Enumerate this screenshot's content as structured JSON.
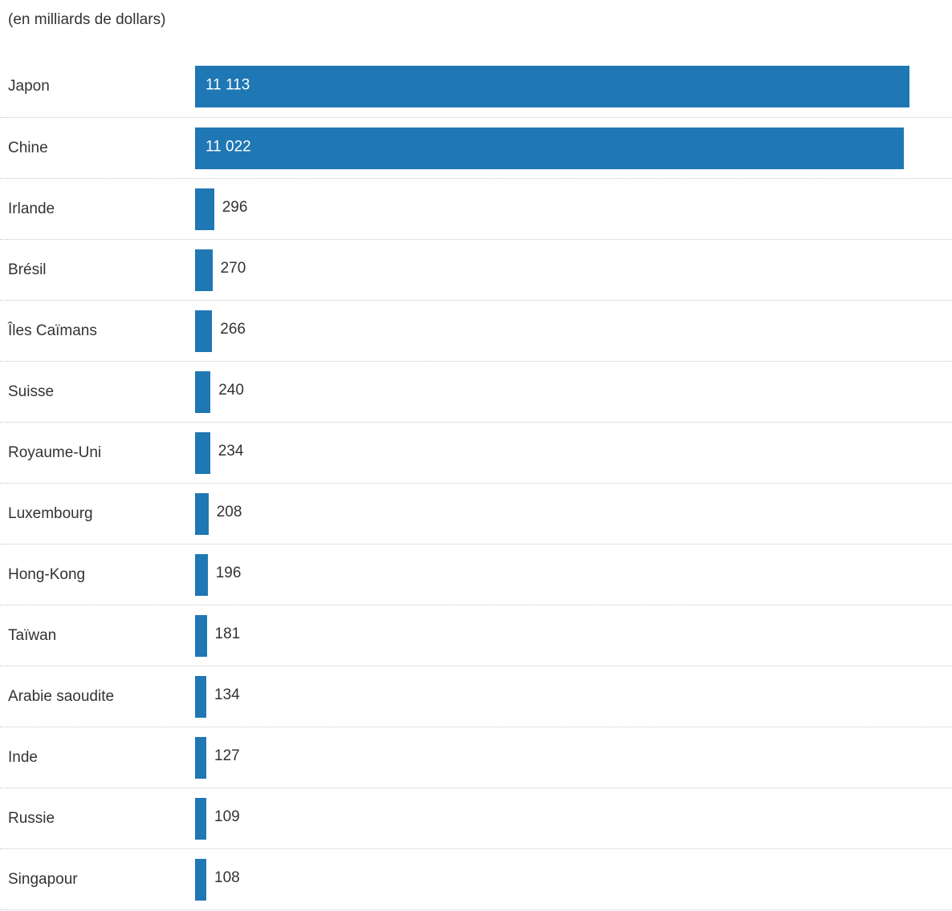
{
  "subtitle": "(en milliards de dollars)",
  "chart_data": {
    "type": "bar",
    "orientation": "horizontal",
    "title": "",
    "subtitle": "(en milliards de dollars)",
    "unit": "milliards de dollars",
    "categories": [
      "Japon",
      "Chine",
      "Irlande",
      "Brésil",
      "Îles Caïmans",
      "Suisse",
      "Royaume-Uni",
      "Luxembourg",
      "Hong-Kong",
      "Taïwan",
      "Arabie saoudite",
      "Inde",
      "Russie",
      "Singapour"
    ],
    "values": [
      11113,
      11022,
      296,
      270,
      266,
      240,
      234,
      208,
      196,
      181,
      134,
      127,
      109,
      108
    ],
    "value_labels": [
      "11 113",
      "11 022",
      "296",
      "270",
      "266",
      "240",
      "234",
      "208",
      "196",
      "181",
      "134",
      "127",
      "109",
      "108"
    ],
    "xlim": [
      0,
      11113
    ],
    "bar_color": "#1f77b4",
    "separator_style": "dotted",
    "legend": "none",
    "grid": false
  }
}
